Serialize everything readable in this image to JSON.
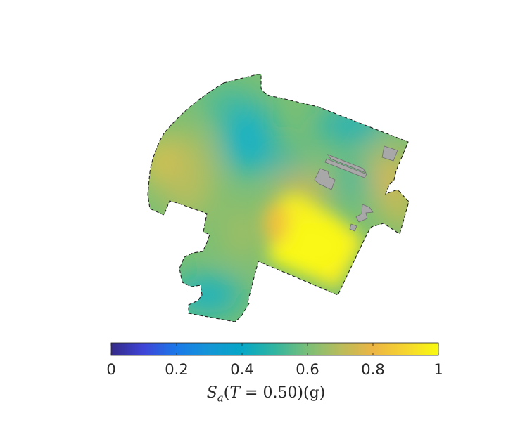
{
  "chart_data": {
    "type": "heatmap",
    "colormap": "parula",
    "colorbar": {
      "orientation": "horizontal",
      "location": "bottom",
      "range": [
        0,
        1
      ],
      "ticks": [
        0,
        0.2,
        0.4,
        0.6,
        0.8,
        1
      ],
      "tick_labels": [
        "0",
        "0.2",
        "0.4",
        "0.6",
        "0.8",
        "1"
      ],
      "label": {
        "S": "S",
        "a": "a",
        "T": "T",
        "rest": " = 0.50)(g)"
      }
    },
    "region_outline": "dashed",
    "building_color": "#a8a8a8",
    "grid": false
  }
}
